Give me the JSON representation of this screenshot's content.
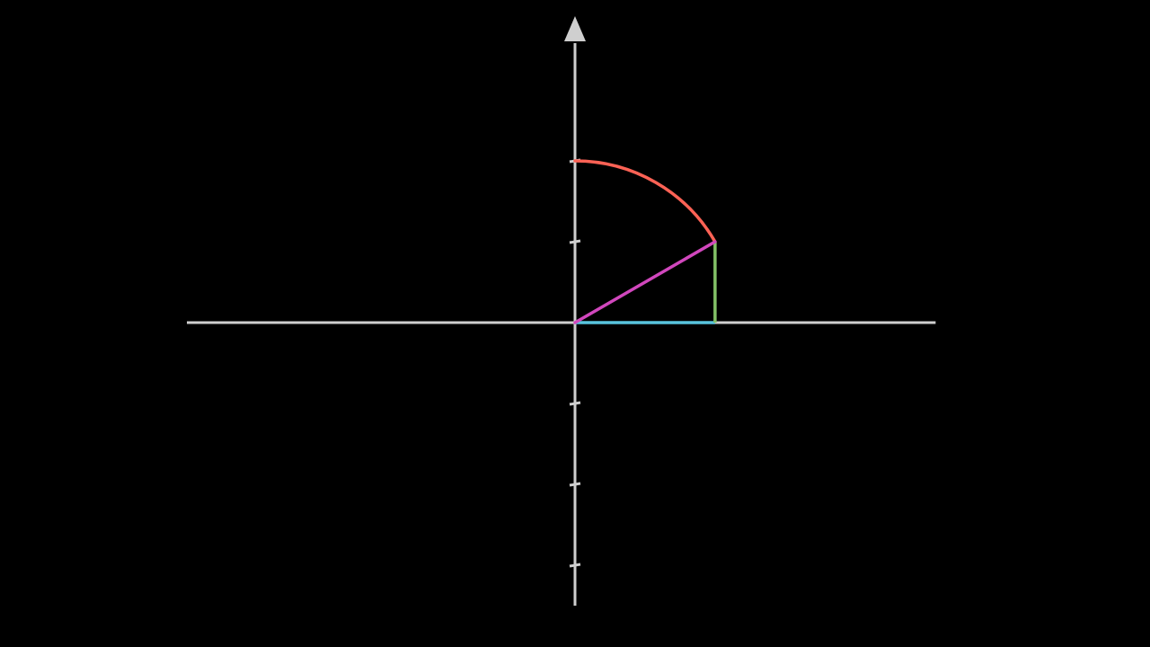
{
  "colors": {
    "background": "#000000",
    "axis": "#cfcfcf",
    "arc": "#fc6255",
    "radius": "#d147bd",
    "vertical_leg": "#83c167",
    "horizontal_leg": "#58c4dd"
  },
  "diagram": {
    "unit": 180,
    "angle_deg": 30,
    "x_axis_range": [
      -2.4,
      2.23
    ],
    "y_axis_range": [
      -1.75,
      1.75
    ],
    "y_ticks": [
      -1.5,
      -1,
      -0.5,
      0.5,
      1
    ],
    "x_ticks": [],
    "arc_from_deg": 90,
    "arc_to_deg": 30,
    "y_axis_arrow": "up",
    "labels": []
  }
}
